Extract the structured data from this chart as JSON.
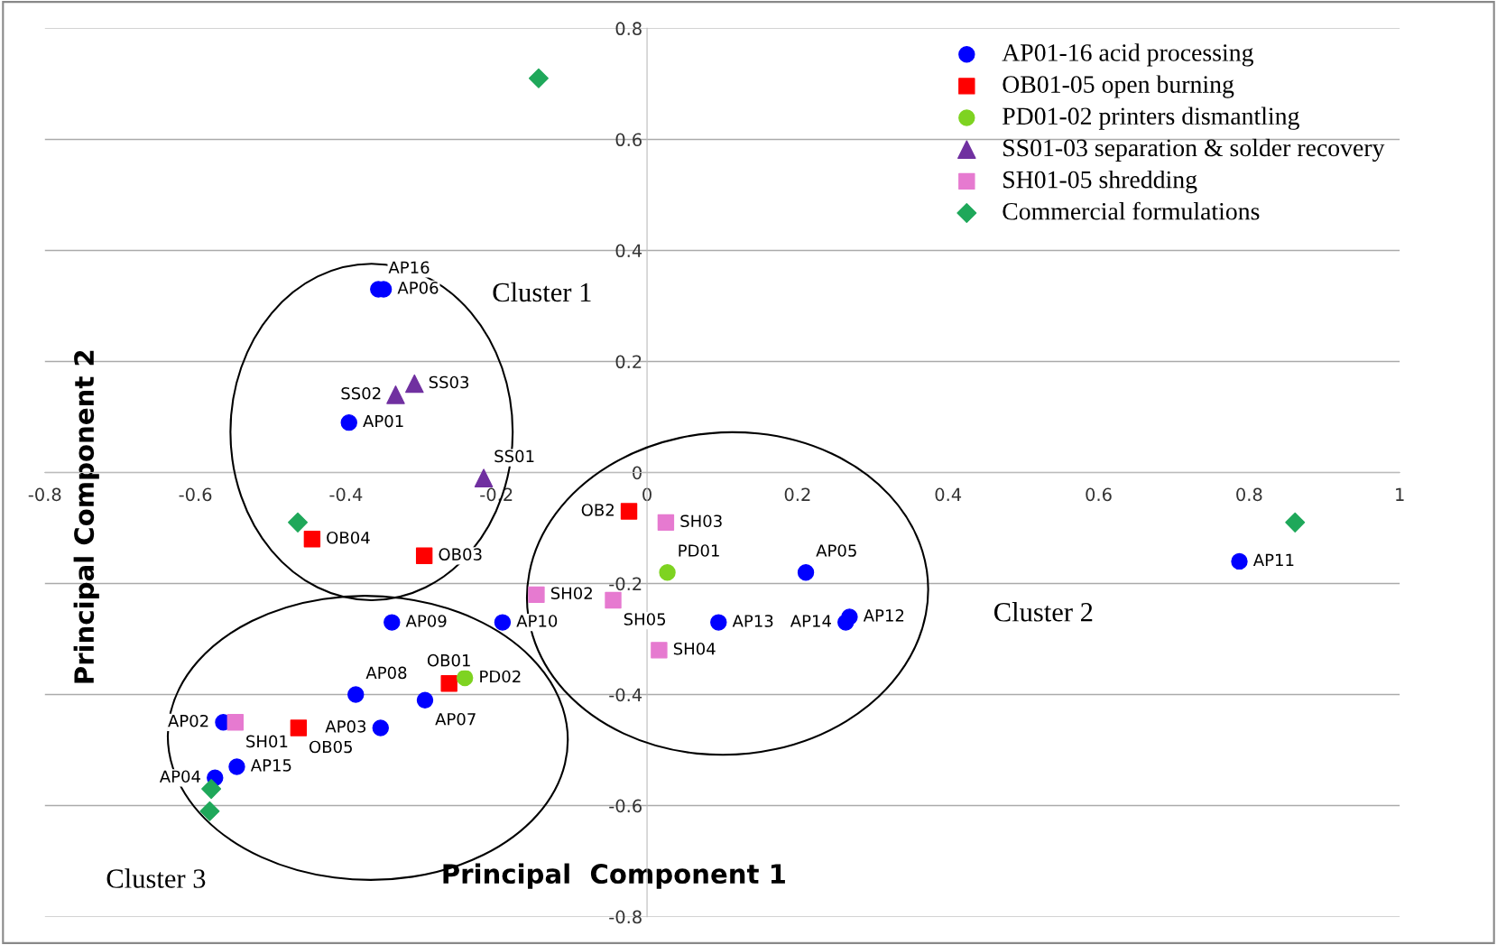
{
  "chart_data": {
    "type": "scatter",
    "xlabel": "Principal  Component 1",
    "ylabel": "Principal Component 2",
    "xlim": [
      -0.8,
      1
    ],
    "ylim": [
      -0.8,
      0.8
    ],
    "xticks": [
      -0.8,
      -0.6,
      -0.4,
      -0.2,
      0,
      0.2,
      0.4,
      0.6,
      0.8,
      1
    ],
    "yticks": [
      -0.8,
      -0.6,
      -0.4,
      -0.2,
      0,
      0.2,
      0.4,
      0.6,
      0.8
    ],
    "grid": "y",
    "legend": "top right",
    "series": [
      {
        "name": "AP01-16 acid processing",
        "color": "#0000ff",
        "marker": "circle",
        "x": [
          -0.35,
          -0.357,
          -0.396,
          0.211,
          0.787,
          0.269,
          0.264,
          0.095,
          -0.339,
          -0.192,
          -0.387,
          -0.295,
          -0.563,
          -0.354,
          -0.545,
          -0.574
        ],
        "values": [
          0.33,
          0.33,
          0.09,
          -0.18,
          -0.16,
          -0.26,
          -0.27,
          -0.27,
          -0.27,
          -0.27,
          -0.4,
          -0.41,
          -0.45,
          -0.46,
          -0.53,
          -0.55
        ],
        "value_labels": [
          "AP06",
          "AP16",
          "AP01",
          "AP05",
          "AP11",
          "AP12",
          "AP14",
          "AP13",
          "AP09",
          "AP10",
          "AP08",
          "AP07",
          "AP02",
          "AP03",
          "AP15",
          "AP04"
        ]
      },
      {
        "name": "OB01-05 open burning",
        "color": "#ff0000",
        "marker": "square",
        "x": [
          -0.445,
          -0.296,
          -0.024,
          -0.263,
          -0.463
        ],
        "values": [
          -0.12,
          -0.15,
          -0.07,
          -0.38,
          -0.46
        ],
        "value_labels": [
          "OB04",
          "OB03",
          "OB2",
          "OB01",
          "OB05"
        ]
      },
      {
        "name": "PD01-02 printers dismantling",
        "color": "#7ed321",
        "marker": "circle",
        "x": [
          0.027,
          -0.242
        ],
        "values": [
          -0.18,
          -0.37
        ],
        "value_labels": [
          "PD01",
          "PD02"
        ]
      },
      {
        "name": "SS01-03 separation & solder recovery",
        "color": "#7030a0",
        "marker": "triangle",
        "x": [
          -0.334,
          -0.309,
          -0.217
        ],
        "values": [
          0.14,
          0.16,
          -0.01
        ],
        "value_labels": [
          "SS02",
          "SS03",
          "SS01"
        ]
      },
      {
        "name": "SH01-05 shredding",
        "color": "#e67ad0",
        "marker": "square",
        "x": [
          0.025,
          -0.147,
          -0.045,
          0.016,
          -0.547
        ],
        "values": [
          -0.09,
          -0.22,
          -0.23,
          -0.32,
          -0.45
        ],
        "value_labels": [
          "SH03",
          "SH02",
          "SH05",
          "SH04",
          "SH01"
        ]
      },
      {
        "name": "Commercial formulations",
        "color": "#1fa85a",
        "marker": "diamond",
        "x": [
          -0.144,
          -0.464,
          0.861,
          -0.579,
          -0.581
        ],
        "values": [
          0.71,
          -0.09,
          -0.09,
          -0.57,
          -0.61
        ]
      }
    ],
    "annotations": [
      "Cluster 1",
      "Cluster 2",
      "Cluster 3"
    ]
  }
}
